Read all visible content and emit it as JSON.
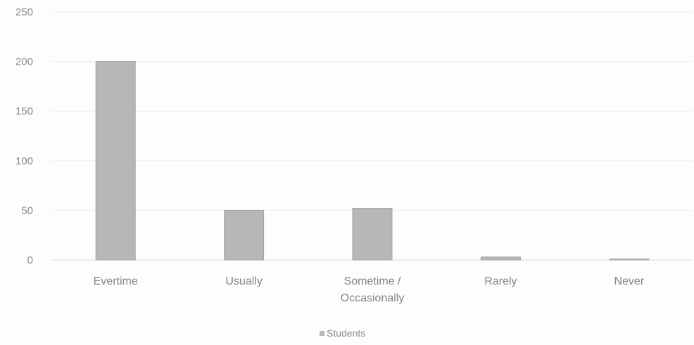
{
  "chart_data": {
    "type": "bar",
    "categories": [
      "Evertime",
      "Usually",
      "Sometime / Occasionally",
      "Rarely",
      "Never"
    ],
    "series": [
      {
        "name": "Students",
        "values": [
          200,
          50,
          52,
          3,
          1
        ]
      }
    ],
    "ylim": [
      0,
      250
    ],
    "yticks": [
      0,
      50,
      100,
      150,
      200,
      250
    ],
    "grid": true,
    "legend": "bottom-center",
    "colors": {
      "bar": "#b7b7b7",
      "bar_edge": "#a3a3a3",
      "grid": "#f0f0ee",
      "axis": "#dcdcdc",
      "text": "#858585"
    }
  }
}
